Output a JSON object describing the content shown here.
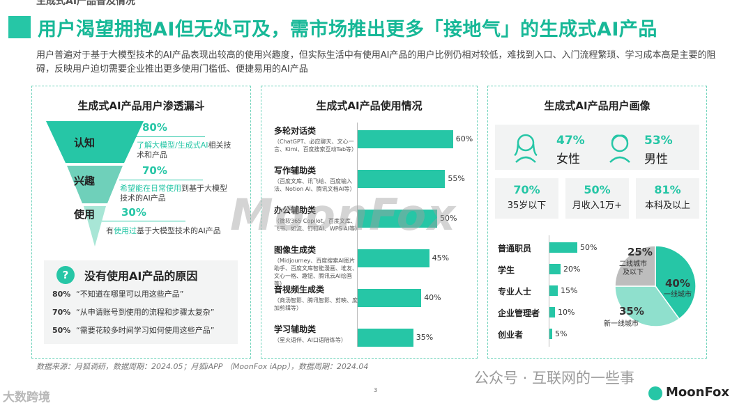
{
  "header": {
    "cut_title": "生成式AI产品普及情况",
    "title": "用户渴望拥抱AI但无处可及，需市场推出更多「接地气」的生成式AI产品",
    "intro": "用户普遍对于基于大模型技术的AI产品表现出较高的使用兴趣度，但实际生活中有使用AI产品的用户比例仍相对较低，难找到入口、入门流程繁琐、学习成本高是主要的阻碍，反映用户迫切需要企业推出更多使用门槛低、便捷易用的AI产品"
  },
  "funnel": {
    "title": "生成式AI产品用户渗透漏斗",
    "stages": [
      {
        "label": "认知",
        "pct": "80%",
        "desc_hl": "了解大模型/生成式AI",
        "desc_rest": "相关技术和产品"
      },
      {
        "label": "兴趣",
        "pct": "70%",
        "desc_hl": "希望能在日常使用",
        "desc_rest": "到基于大模型技术的AI产品"
      },
      {
        "label": "使用",
        "pct": "30%",
        "desc_pre": "有",
        "desc_hl": "使用过",
        "desc_rest": "基于大模型技术的AI产品"
      }
    ]
  },
  "reasons": {
    "icon": "?",
    "title": "没有使用AI产品的原因",
    "items": [
      {
        "pct": "80%",
        "text": "“不知道在哪里可以用这些产品”"
      },
      {
        "pct": "70%",
        "text": "“从申请账号到使用的流程和步骤太复杂”"
      },
      {
        "pct": "50%",
        "text": "“需要花较多时间学习如何使用这些产品”"
      }
    ]
  },
  "usage": {
    "title": "生成式AI产品使用情况",
    "items": [
      {
        "name": "多轮对话类",
        "sub": "（ChatGPT、必应聊天、文心一言、Kimi、百度搜索互动Tab等）",
        "value": 60,
        "label": "60%"
      },
      {
        "name": "写作辅助类",
        "sub": "（百度文库、讯飞绘、百度输入法、Notion AI、腾讯文档AI等）",
        "value": 55,
        "label": "55%"
      },
      {
        "name": "办公辅助类",
        "sub": "（微软365 Copilot、百度文库、飞书、如流、钉钉AI、WPS AI等）",
        "value": 50,
        "label": "50%"
      },
      {
        "name": "图像生成类",
        "sub": "（Midjourney、百度搜索AI图片助手、百度文库智能漫画、堆友、文心一格、趣钮、腾讯云AI绘画等）",
        "value": 45,
        "label": "45%"
      },
      {
        "name": "音视频生成类",
        "sub": "（商汤智影、腾讯智影、剪映、度加剪辑等）",
        "value": 40,
        "label": "40%"
      },
      {
        "name": "学习辅助类",
        "sub": "（星火语伴、AI口语陪练等）",
        "value": 35,
        "label": "35%"
      }
    ]
  },
  "persona": {
    "title": "生成式AI产品用户画像",
    "female": {
      "pct": "47%",
      "label": "女性"
    },
    "male": {
      "pct": "53%",
      "label": "男性"
    },
    "stats": [
      {
        "pct": "70%",
        "label": "35岁以下"
      },
      {
        "pct": "50%",
        "label": "月收入1万+"
      },
      {
        "pct": "81%",
        "label": "本科及以上"
      }
    ],
    "occupations": [
      {
        "name": "普通职员",
        "value": 50,
        "label": "50%"
      },
      {
        "name": "学生",
        "value": 20,
        "label": "20%"
      },
      {
        "name": "专业人士",
        "value": 15,
        "label": "15%"
      },
      {
        "name": "企业管理者",
        "value": 10,
        "label": "10%"
      },
      {
        "name": "创业者",
        "value": 5,
        "label": "5%"
      }
    ],
    "cities": [
      {
        "name": "一线城市",
        "value": 40,
        "label": "40%",
        "color": "#26c6a6"
      },
      {
        "name": "新一线城市",
        "value": 35,
        "label": "35%",
        "color": "#8fe0cd"
      },
      {
        "name": "二线城市及以下",
        "value": 25,
        "label": "25%",
        "color": "#bdbdbd"
      }
    ],
    "city_label_lines": {
      "c1": "一线城市",
      "c2": "新一线城市",
      "c3a": "二线城市",
      "c3b": "及以下"
    }
  },
  "footer": {
    "source": "数据来源：月狐调研，数据周期：2024.05；月狐iAPP （MoonFox iApp），数据周期：2024.04",
    "page": "3",
    "watermark_left": "大数跨境",
    "watermark_wechat": "公众号 · 互联网的一些事",
    "watermark_center": "MoonFox",
    "brand": "MoonFox"
  },
  "colors": {
    "accent": "#26c6a6",
    "light": "#8fe0cd",
    "gray": "#bdbdbd"
  }
}
